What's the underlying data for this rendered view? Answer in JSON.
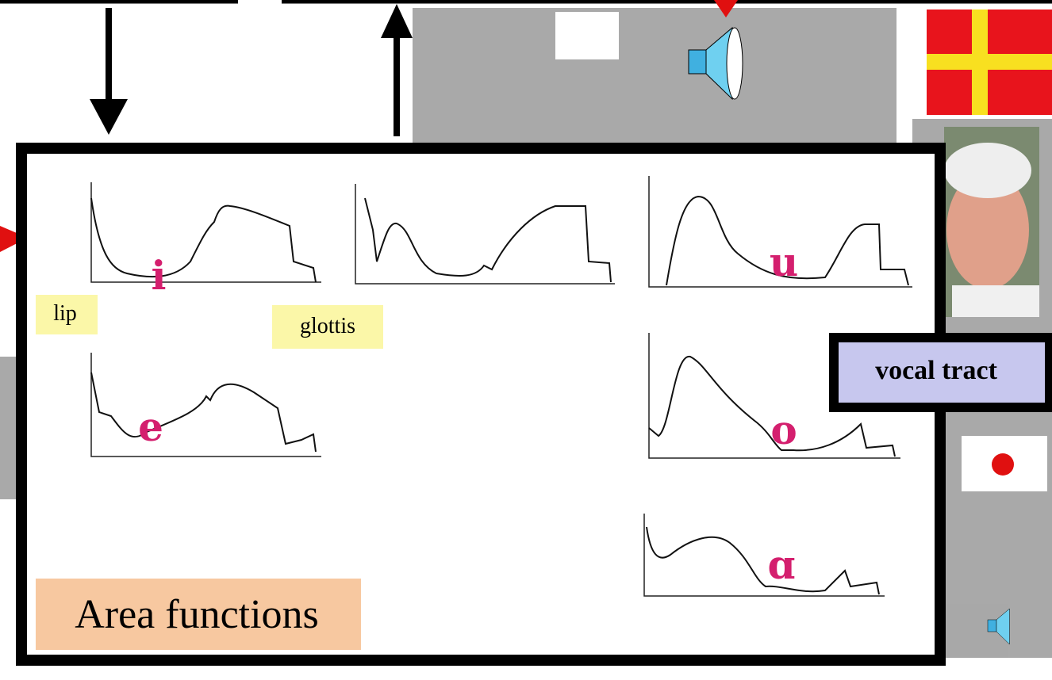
{
  "title": "Area functions",
  "lip": "lip",
  "glottis": "glottis",
  "vocal_tract": "vocal tract",
  "vowels": [
    "i",
    "e",
    "u",
    "o",
    "ɑ"
  ]
}
